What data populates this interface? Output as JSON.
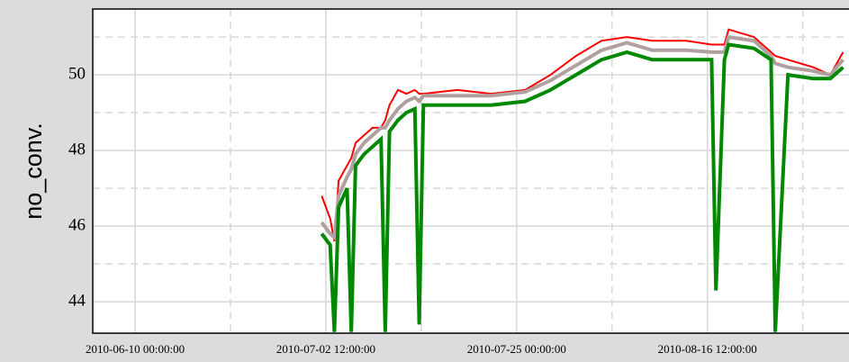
{
  "chart_data": {
    "type": "line",
    "ylabel": "no_conv.",
    "x": [
      "2010-07-02 00:00:00",
      "2010-07-03 00:00:00",
      "2010-07-03 12:00:00",
      "2010-07-04 00:00:00",
      "2010-07-05 00:00:00",
      "2010-07-05 12:00:00",
      "2010-07-06 00:00:00",
      "2010-07-07 00:00:00",
      "2010-07-08 00:00:00",
      "2010-07-09 00:00:00",
      "2010-07-09 12:00:00",
      "2010-07-10 00:00:00",
      "2010-07-11 00:00:00",
      "2010-07-12 00:00:00",
      "2010-07-13 00:00:00",
      "2010-07-13 12:00:00",
      "2010-07-14 00:00:00",
      "2010-07-18 00:00:00",
      "2010-07-22 00:00:00",
      "2010-07-26 00:00:00",
      "2010-07-29 00:00:00",
      "2010-08-01 00:00:00",
      "2010-08-04 00:00:00",
      "2010-08-07 00:00:00",
      "2010-08-10 00:00:00",
      "2010-08-14 00:00:00",
      "2010-08-17 00:00:00",
      "2010-08-17 12:00:00",
      "2010-08-18 12:00:00",
      "2010-08-19 00:00:00",
      "2010-08-22 00:00:00",
      "2010-08-24 00:00:00",
      "2010-08-24 12:00:00",
      "2010-08-26 00:00:00",
      "2010-08-29 00:00:00",
      "2010-08-31 00:00:00",
      "2010-09-01 12:00:00"
    ],
    "series": [
      {
        "color": "#ff0000",
        "width": 2,
        "values": [
          46.8,
          46.2,
          45.6,
          47.2,
          47.6,
          47.8,
          48.2,
          48.4,
          48.6,
          48.6,
          48.8,
          49.2,
          49.6,
          49.5,
          49.6,
          49.5,
          49.5,
          49.6,
          49.5,
          49.6,
          50.0,
          50.5,
          50.9,
          51.0,
          50.9,
          50.9,
          50.8,
          50.8,
          50.8,
          51.2,
          51.0,
          50.6,
          50.5,
          50.4,
          50.2,
          50.0,
          50.6
        ]
      },
      {
        "color": "#b0a0a0",
        "width": 4,
        "values": [
          46.1,
          45.8,
          45.7,
          46.8,
          47.3,
          47.5,
          47.9,
          48.2,
          48.4,
          48.6,
          48.6,
          48.8,
          49.1,
          49.3,
          49.4,
          49.3,
          49.45,
          49.45,
          49.45,
          49.55,
          49.85,
          50.25,
          50.65,
          50.85,
          50.65,
          50.65,
          50.6,
          50.6,
          50.6,
          51.0,
          50.9,
          50.5,
          50.3,
          50.2,
          50.1,
          50.0,
          50.4
        ]
      },
      {
        "color": "#008800",
        "width": 4,
        "values": [
          45.8,
          45.5,
          43.2,
          46.5,
          47.0,
          43.2,
          47.6,
          47.9,
          48.1,
          48.3,
          43.2,
          48.5,
          48.8,
          49.0,
          49.1,
          43.4,
          49.2,
          49.2,
          49.2,
          49.3,
          49.6,
          50.0,
          50.4,
          50.6,
          50.4,
          50.4,
          50.4,
          44.3,
          50.4,
          50.8,
          50.7,
          50.4,
          43.2,
          50.0,
          49.9,
          49.9,
          50.2
        ]
      }
    ],
    "xlim": [
      "2010-06-05 00:00:00",
      "2010-09-02 04:48:00"
    ],
    "xticks": [
      "2010-06-10 00:00:00",
      "2010-07-02 12:00:00",
      "2010-07-25 00:00:00",
      "2010-08-16 12:00:00"
    ],
    "x_minor_ticks": [
      "2010-06-21 06:00:00",
      "2010-07-13 18:00:00",
      "2010-08-05 06:00:00",
      "2010-08-27 18:00:00"
    ],
    "ylim": [
      43.17,
      51.74
    ],
    "yticks": [
      44,
      46,
      48,
      50
    ],
    "y_minor_ticks": [
      45,
      47,
      49,
      51
    ],
    "grid": true
  }
}
